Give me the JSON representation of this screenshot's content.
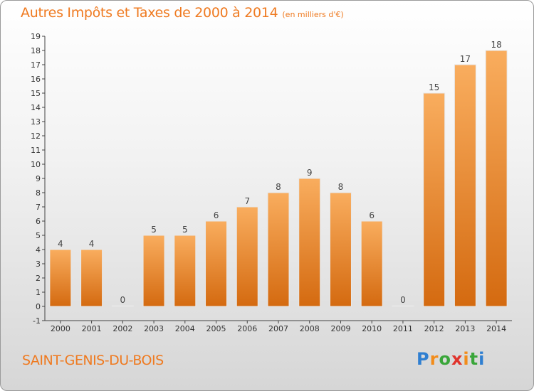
{
  "header": {
    "title": "Autres Impôts et Taxes de 2000 à 2014",
    "unit": "(en milliers d'€)"
  },
  "footer": {
    "town": "SAINT-GENIS-DU-BOIS",
    "logo": "Proxiti"
  },
  "colors": {
    "bar_light": "#f7a552",
    "bar_dark": "#d86e12",
    "text_orange": "#ef7a20"
  },
  "chart_data": {
    "type": "bar",
    "title": "Autres Impôts et Taxes de 2000 à 2014",
    "subtitle": "(en milliers d'€)",
    "categories": [
      "2000",
      "2001",
      "2002",
      "2003",
      "2004",
      "2005",
      "2006",
      "2007",
      "2008",
      "2009",
      "2010",
      "2011",
      "2012",
      "2013",
      "2014"
    ],
    "values": [
      4,
      4,
      0,
      5,
      5,
      6,
      7,
      8,
      9,
      8,
      6,
      0,
      15,
      17,
      18
    ],
    "ylim": [
      -1,
      19
    ],
    "yticks": [
      -1,
      0,
      1,
      2,
      3,
      4,
      5,
      6,
      7,
      8,
      9,
      10,
      11,
      12,
      13,
      14,
      15,
      16,
      17,
      18,
      19
    ],
    "grid": false,
    "legend": "none"
  }
}
